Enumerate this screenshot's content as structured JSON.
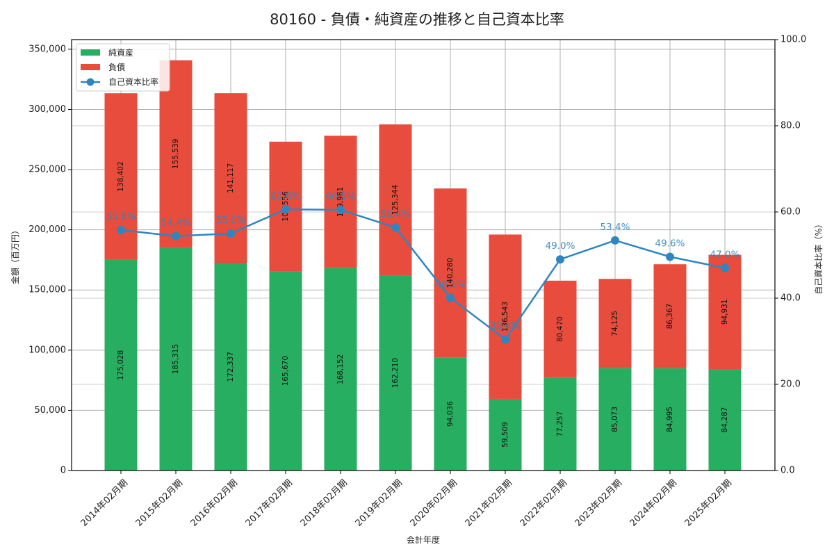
{
  "chart_data": {
    "type": "bar",
    "subtype": "stacked-bar-with-line-secondary-axis",
    "title": "80160 - 負債・純資産の推移と自己資本比率",
    "xlabel": "会計年度",
    "ylabel": "金額（百万円）",
    "y2label": "自己資本比率（%）",
    "ylim": [
      0,
      358000
    ],
    "y2lim": [
      0,
      100
    ],
    "yticks": [
      0,
      50000,
      100000,
      150000,
      200000,
      250000,
      300000,
      350000
    ],
    "ytick_labels": [
      "0",
      "50,000",
      "100,000",
      "150,000",
      "200,000",
      "250,000",
      "300,000",
      "350,000"
    ],
    "y2ticks": [
      0,
      20,
      40,
      60,
      80,
      100
    ],
    "y2tick_labels": [
      "0.0",
      "20.0",
      "40.0",
      "60.0",
      "80.0",
      "100.0"
    ],
    "grid": true,
    "legend_position": "upper left",
    "categories": [
      "2014年02月期",
      "2015年02月期",
      "2016年02月期",
      "2017年02月期",
      "2018年02月期",
      "2019年02月期",
      "2020年02月期",
      "2021年02月期",
      "2022年02月期",
      "2023年02月期",
      "2024年02月期",
      "2025年02月期"
    ],
    "series": [
      {
        "name": "純資産",
        "type": "bar",
        "axis": "left",
        "color": "#27ae60",
        "values": [
          175028,
          185315,
          172337,
          165670,
          168152,
          162210,
          94036,
          59509,
          77257,
          85073,
          84995,
          84287
        ],
        "labels": [
          "175,028",
          "185,315",
          "172,337",
          "165,670",
          "168,152",
          "162,210",
          "94,036",
          "59,509",
          "77,257",
          "85,073",
          "84,995",
          "84,287"
        ]
      },
      {
        "name": "負債",
        "type": "bar",
        "axis": "left",
        "color": "#e74c3c",
        "values": [
          138402,
          155539,
          141117,
          107556,
          109981,
          125344,
          140280,
          136543,
          80470,
          74125,
          86367,
          94931
        ],
        "labels": [
          "138,402",
          "155,539",
          "141,117",
          "107,556",
          "109,981",
          "125,344",
          "140,280",
          "136,543",
          "80,470",
          "74,125",
          "86,367",
          "94,931"
        ]
      },
      {
        "name": "自己資本比率",
        "type": "line",
        "axis": "right",
        "color": "#2e86c1",
        "values": [
          55.8,
          54.4,
          55.0,
          60.6,
          60.5,
          56.4,
          40.1,
          30.4,
          49.0,
          53.4,
          49.6,
          47.0
        ],
        "labels": [
          "55.8%",
          "54.4%",
          "55.0%",
          "60.6%",
          "60.5%",
          "56.4%",
          "40.1%",
          "30.4%",
          "49.0%",
          "53.4%",
          "49.6%",
          "47.0%"
        ]
      }
    ]
  }
}
